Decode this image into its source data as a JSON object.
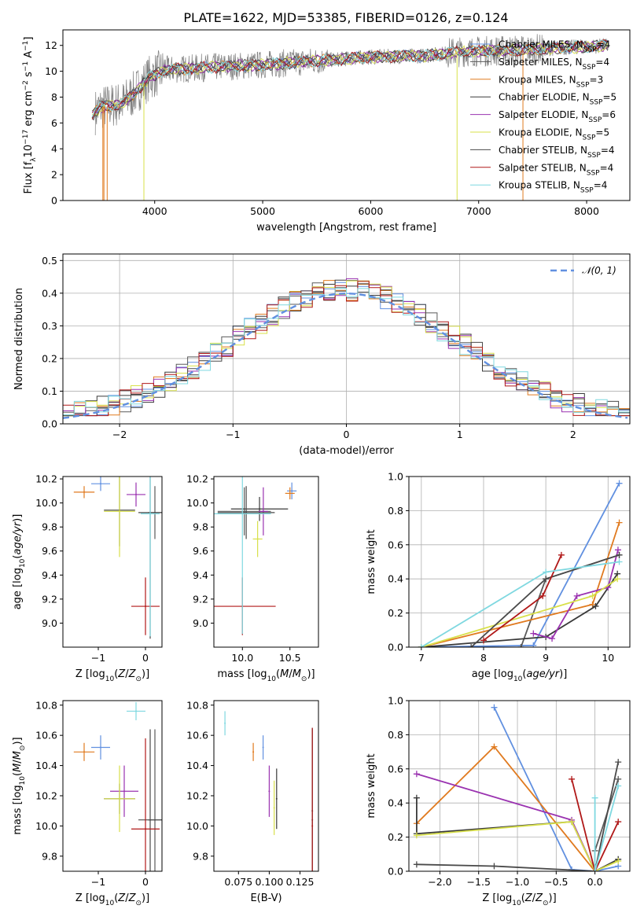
{
  "figure": {
    "title": "PLATE=1622, MJD=53385, FIBERID=0126, z=0.124"
  },
  "series": [
    {
      "name": "Chabrier MILES",
      "nssp": "4",
      "color": "#6190e0"
    },
    {
      "name": "Salpeter MILES",
      "nssp": "4",
      "color": "#5a5a5a"
    },
    {
      "name": "Kroupa MILES",
      "nssp": "3",
      "color": "#e07a1f"
    },
    {
      "name": "Chabrier ELODIE",
      "nssp": "5",
      "color": "#3a3a3a"
    },
    {
      "name": "Salpeter ELODIE",
      "nssp": "6",
      "color": "#9a32b0"
    },
    {
      "name": "Kroupa ELODIE",
      "nssp": "5",
      "color": "#d8e04a"
    },
    {
      "name": "Chabrier STELIB",
      "nssp": "4",
      "color": "#4a4a4a"
    },
    {
      "name": "Salpeter STELIB",
      "nssp": "4",
      "color": "#b01818"
    },
    {
      "name": "Kroupa STELIB",
      "nssp": "4",
      "color": "#7fd8e0"
    }
  ],
  "chart_data": [
    {
      "type": "line",
      "id": "spectrum",
      "xlabel": "wavelength [Angstrom, rest frame]",
      "ylabel": "Flux [f_λ 10^-17 erg cm^-2 s^-1 A^-1]",
      "xlim": [
        3150,
        8400
      ],
      "ylim": [
        0,
        13.2
      ],
      "xticks": [
        "4000",
        "5000",
        "6000",
        "7000",
        "8000"
      ],
      "yticks": [
        "0",
        "2",
        "4",
        "6",
        "8",
        "10",
        "12"
      ],
      "legend": "right",
      "observed_color": "#808080",
      "continuum": [
        [
          3400,
          6.5
        ],
        [
          3500,
          7.2
        ],
        [
          3700,
          7.5
        ],
        [
          3800,
          8.2
        ],
        [
          3950,
          9.5
        ],
        [
          4100,
          10.1
        ],
        [
          4500,
          10.3
        ],
        [
          5000,
          10.5
        ],
        [
          5500,
          10.8
        ],
        [
          6000,
          11.1
        ],
        [
          6500,
          11.2
        ],
        [
          6800,
          11.5
        ],
        [
          7200,
          11.6
        ],
        [
          7500,
          11.7
        ],
        [
          8200,
          12.0
        ]
      ]
    },
    {
      "type": "bar",
      "id": "residuals",
      "xlabel": "(data-model)/error",
      "ylabel": "Normed distribution",
      "xlim": [
        -2.5,
        2.5
      ],
      "ylim": [
        0,
        0.52
      ],
      "xticks": [
        "−2",
        "−1",
        "0",
        "1",
        "2"
      ],
      "yticks": [
        "0.0",
        "0.1",
        "0.2",
        "0.3",
        "0.4",
        "0.5"
      ],
      "reference_curve": {
        "name": "𝒩(0, 1)",
        "color": "#6190e0",
        "style": "dashed"
      },
      "legend": "top-right"
    },
    {
      "type": "scatter",
      "id": "age_vs_Z",
      "xlabel": "Z [log10(Z/Z⊙)]",
      "ylabel": "age [log10(age/yr)]",
      "xlim": [
        -1.75,
        0.35
      ],
      "ylim": [
        8.8,
        10.22
      ],
      "xticks": [
        "−1",
        "0"
      ],
      "yticks": [
        "9.0",
        "9.2",
        "9.4",
        "9.6",
        "9.8",
        "10.0",
        "10.2"
      ],
      "points": [
        {
          "x": -0.95,
          "y": 10.16,
          "xerr": 0.2,
          "yerr": 0.06
        },
        {
          "x": 0.2,
          "y": 9.92,
          "xerr": 0.15,
          "yerr": 0.22
        },
        {
          "x": -1.3,
          "y": 10.09,
          "xerr": 0.22,
          "yerr": 0.05
        },
        {
          "x": -0.55,
          "y": 9.94,
          "xerr": 0.33,
          "yerr": 0.3
        },
        {
          "x": -0.2,
          "y": 10.07,
          "xerr": 0.2,
          "yerr": 0.1
        },
        {
          "x": -0.55,
          "y": 9.93,
          "xerr": 0.33,
          "yerr": 0.38
        },
        {
          "x": 0.1,
          "y": 9.92,
          "xerr": 0.25,
          "yerr": 1.05
        },
        {
          "x": 0.0,
          "y": 9.14,
          "xerr": 0.3,
          "yerr": 0.24
        },
        {
          "x": 0.1,
          "y": 9.91,
          "xerr": 0.2,
          "yerr": 1.02
        }
      ]
    },
    {
      "type": "scatter",
      "id": "age_vs_mass",
      "xlabel": "mass [log10(M/M⊙)]",
      "ylabel": "",
      "xlim": [
        9.7,
        10.8
      ],
      "ylim": [
        8.8,
        10.22
      ],
      "xticks": [
        "10.0",
        "10.5"
      ],
      "yticks": [
        "9.0",
        "9.2",
        "9.4",
        "9.6",
        "9.8",
        "10.0",
        "10.2"
      ],
      "points": [
        {
          "x": 10.52,
          "y": 10.1,
          "xerr": 0.05,
          "yerr": 0.07
        },
        {
          "x": 10.02,
          "y": 9.93,
          "xerr": 0.28,
          "yerr": 0.2
        },
        {
          "x": 10.5,
          "y": 10.08,
          "xerr": 0.05,
          "yerr": 0.05
        },
        {
          "x": 10.18,
          "y": 9.95,
          "xerr": 0.3,
          "yerr": 0.1
        },
        {
          "x": 10.22,
          "y": 9.93,
          "xerr": 0.05,
          "yerr": 0.2
        },
        {
          "x": 10.16,
          "y": 9.7,
          "xerr": 0.05,
          "yerr": 0.15
        },
        {
          "x": 10.04,
          "y": 9.92,
          "xerr": 0.3,
          "yerr": 0.22
        },
        {
          "x": 10.0,
          "y": 9.14,
          "xerr": 0.35,
          "yerr": 0.24
        },
        {
          "x": 10.0,
          "y": 9.91,
          "xerr": 0.3,
          "yerr": 1.0
        }
      ]
    },
    {
      "type": "line",
      "id": "mass_weight_vs_age",
      "xlabel": "age [log10(age/yr)]",
      "ylabel": "mass weight",
      "xlim": [
        6.8,
        10.35
      ],
      "ylim": [
        0,
        1.0
      ],
      "xticks": [
        "7",
        "8",
        "9",
        "10"
      ],
      "yticks": [
        "0.0",
        "0.2",
        "0.4",
        "0.6",
        "0.8",
        "1.0"
      ],
      "lines": [
        [
          [
            7.0,
            0.0
          ],
          [
            8.8,
            0.01
          ],
          [
            10.18,
            0.96
          ]
        ],
        [
          [
            8.6,
            0.0
          ],
          [
            9.0,
            0.4
          ],
          [
            10.18,
            0.54
          ]
        ],
        [
          [
            7.0,
            0.0
          ],
          [
            9.75,
            0.25
          ],
          [
            10.18,
            0.73
          ]
        ],
        [
          [
            7.0,
            0.0
          ],
          [
            9.0,
            0.06
          ],
          [
            9.8,
            0.24
          ],
          [
            10.15,
            0.43
          ]
        ],
        [
          [
            8.8,
            0.08
          ],
          [
            9.1,
            0.05
          ],
          [
            9.5,
            0.3
          ],
          [
            10.0,
            0.35
          ],
          [
            10.16,
            0.57
          ]
        ],
        [
          [
            7.0,
            0.0
          ],
          [
            9.75,
            0.3
          ],
          [
            10.15,
            0.4
          ]
        ],
        [
          [
            7.8,
            0.0
          ],
          [
            9.0,
            0.4
          ],
          [
            10.18,
            0.54
          ]
        ],
        [
          [
            8.0,
            0.04
          ],
          [
            8.95,
            0.3
          ],
          [
            9.25,
            0.54
          ]
        ],
        [
          [
            7.0,
            0.0
          ],
          [
            9.0,
            0.44
          ],
          [
            10.18,
            0.5
          ]
        ]
      ]
    },
    {
      "type": "scatter",
      "id": "mass_vs_Z",
      "xlabel": "Z [log10(Z/Z⊙)]",
      "ylabel": "mass [log10(M/M⊙)]",
      "xlim": [
        -1.75,
        0.35
      ],
      "ylim": [
        9.7,
        10.83
      ],
      "xticks": [
        "−1",
        "0"
      ],
      "yticks": [
        "9.8",
        "10.0",
        "10.2",
        "10.4",
        "10.6",
        "10.8"
      ],
      "points": [
        {
          "x": -0.95,
          "y": 10.52,
          "xerr": 0.2,
          "yerr": 0.08
        },
        {
          "x": 0.2,
          "y": 10.04,
          "xerr": 0.15,
          "yerr": 0.6
        },
        {
          "x": -1.3,
          "y": 10.49,
          "xerr": 0.22,
          "yerr": 0.06
        },
        {
          "x": -0.55,
          "y": 10.18,
          "xerr": 0.33,
          "yerr": 0.1
        },
        {
          "x": -0.45,
          "y": 10.23,
          "xerr": 0.3,
          "yerr": 0.17
        },
        {
          "x": -0.55,
          "y": 10.18,
          "xerr": 0.33,
          "yerr": 0.22
        },
        {
          "x": 0.1,
          "y": 10.04,
          "xerr": 0.25,
          "yerr": 0.6
        },
        {
          "x": 0.0,
          "y": 9.98,
          "xerr": 0.3,
          "yerr": 0.6
        },
        {
          "x": -0.2,
          "y": 10.76,
          "xerr": 0.2,
          "yerr": 0.06
        }
      ]
    },
    {
      "type": "scatter",
      "id": "mass_vs_EBV",
      "xlabel": "E(B-V)",
      "ylabel": "",
      "xlim": [
        0.055,
        0.14
      ],
      "ylim": [
        9.7,
        10.83
      ],
      "xticks": [
        "0.075",
        "0.100",
        "0.125"
      ],
      "yticks": [
        "9.8",
        "10.0",
        "10.2",
        "10.4",
        "10.6",
        "10.8"
      ],
      "points": [
        {
          "x": 0.095,
          "y": 10.52,
          "yerr": 0.08
        },
        {
          "x": 0.135,
          "y": 10.04,
          "yerr": 0.6
        },
        {
          "x": 0.087,
          "y": 10.49,
          "yerr": 0.06
        },
        {
          "x": 0.106,
          "y": 10.18,
          "yerr": 0.2
        },
        {
          "x": 0.1,
          "y": 10.23,
          "yerr": 0.17
        },
        {
          "x": 0.104,
          "y": 10.12,
          "yerr": 0.18
        },
        {
          "x": 0.135,
          "y": 10.1,
          "yerr": 0.55
        },
        {
          "x": 0.135,
          "y": 10.0,
          "yerr": 0.65
        },
        {
          "x": 0.064,
          "y": 10.68,
          "yerr": 0.08
        }
      ]
    },
    {
      "type": "line",
      "id": "mass_weight_vs_Z",
      "xlabel": "Z [log10(Z/Z⊙)]",
      "ylabel": "mass weight",
      "xlim": [
        -2.4,
        0.45
      ],
      "ylim": [
        0,
        1.0
      ],
      "xticks": [
        "−2.0",
        "−1.5",
        "−1.0",
        "−0.5",
        "0.0"
      ],
      "yticks": [
        "0.0",
        "0.2",
        "0.4",
        "0.6",
        "0.8",
        "1.0"
      ],
      "lines": [
        [
          [
            -1.3,
            0.96
          ],
          [
            -0.3,
            0.01
          ],
          [
            0.0,
            0.0
          ],
          [
            0.3,
            0.03
          ]
        ],
        [
          [
            0.0,
            0.0
          ],
          [
            0.0,
            0.12
          ],
          [
            0.3,
            0.54
          ]
        ],
        [
          [
            -2.3,
            0.28
          ],
          [
            -1.3,
            0.73
          ],
          [
            0.0,
            0.0
          ]
        ],
        [
          [
            -2.3,
            0.43
          ],
          [
            -2.3,
            0.22
          ],
          [
            -0.3,
            0.29
          ],
          [
            0.0,
            0.0
          ],
          [
            0.3,
            0.07
          ]
        ],
        [
          [
            -2.3,
            0.57
          ],
          [
            -0.3,
            0.3
          ],
          [
            0.0,
            0.0
          ]
        ],
        [
          [
            -2.3,
            0.21
          ],
          [
            -0.3,
            0.29
          ],
          [
            0.0,
            0.0
          ],
          [
            0.3,
            0.06
          ]
        ],
        [
          [
            -2.3,
            0.04
          ],
          [
            -1.3,
            0.03
          ],
          [
            0.0,
            0.0
          ],
          [
            0.3,
            0.64
          ]
        ],
        [
          [
            -0.3,
            0.54
          ],
          [
            0.0,
            0.0
          ],
          [
            0.3,
            0.29
          ]
        ],
        [
          [
            0.0,
            0.43
          ],
          [
            0.0,
            0.0
          ],
          [
            0.3,
            0.5
          ]
        ]
      ]
    }
  ]
}
